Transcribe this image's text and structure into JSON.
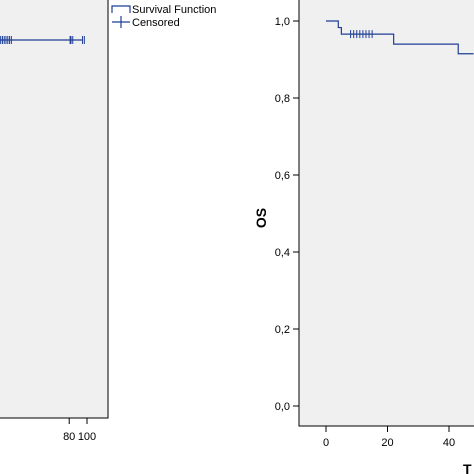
{
  "colors": {
    "panel": "#f0f0f0",
    "series": "#1f3f96",
    "axis": "#000000"
  },
  "legend": {
    "items": [
      {
        "label": "Survival Function",
        "icon": "step-line-icon"
      },
      {
        "label": "Censored",
        "icon": "plus-tick-icon"
      }
    ]
  },
  "chart_data": [
    {
      "type": "line",
      "title": "",
      "xlabel": "",
      "ylabel": "",
      "xlim": [
        null,
        100
      ],
      "ylim": [
        null,
        null
      ],
      "x_ticks": [
        80,
        100
      ],
      "x_tick_labels": [
        "80",
        "100"
      ],
      "series": [
        {
          "name": "Survival Function",
          "kind": "step",
          "points": [
            [
              0,
              0.96
            ],
            [
              100,
              0.96
            ]
          ],
          "censored_x": [
            0,
            1,
            3,
            5,
            7,
            9,
            11,
            13,
            15,
            81,
            82,
            84,
            95,
            97
          ]
        }
      ]
    },
    {
      "type": "line",
      "title": "",
      "xlabel": "T",
      "ylabel": "OS",
      "xlim": [
        -7,
        48
      ],
      "ylim": [
        -0.05,
        1.05
      ],
      "x_ticks": [
        0,
        20,
        40
      ],
      "x_tick_labels": [
        "0",
        "20",
        "40"
      ],
      "y_ticks": [
        0,
        0.2,
        0.4,
        0.6,
        0.8,
        1.0
      ],
      "y_tick_labels": [
        "0,0",
        "0,2",
        "0,4",
        "0,6",
        "0,8",
        "1,0"
      ],
      "series": [
        {
          "name": "Survival Function",
          "kind": "step",
          "points": [
            [
              0,
              1.0
            ],
            [
              4,
              1.0
            ],
            [
              4,
              0.983
            ],
            [
              5,
              0.983
            ],
            [
              5,
              0.966
            ],
            [
              22,
              0.966
            ],
            [
              22,
              0.94
            ],
            [
              43,
              0.94
            ],
            [
              43,
              0.915
            ],
            [
              48,
              0.915
            ]
          ],
          "censored_x": [
            8,
            9,
            10,
            11,
            12,
            13,
            14,
            15
          ]
        }
      ]
    }
  ]
}
